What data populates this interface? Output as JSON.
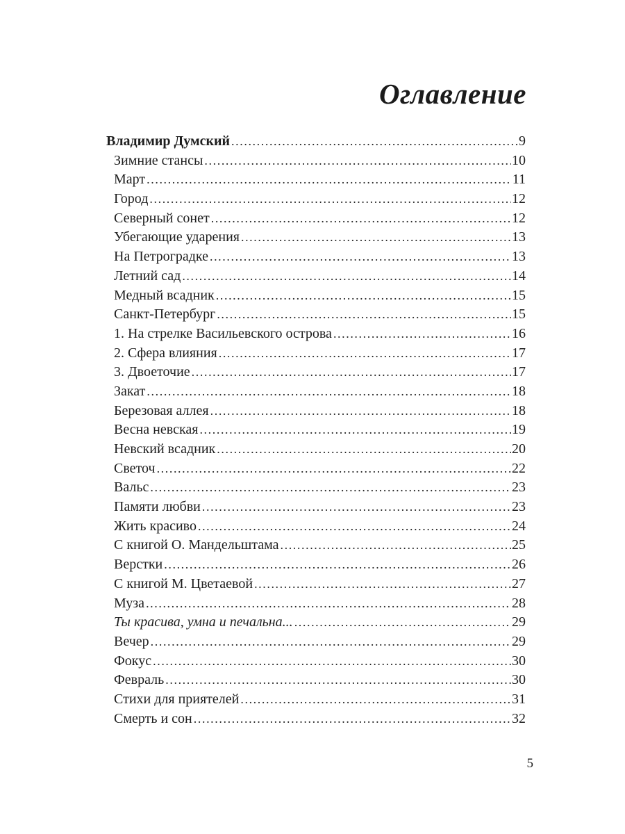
{
  "page": {
    "title": "Оглавление",
    "folio": "5"
  },
  "toc": {
    "entries": [
      {
        "label": "Владимир Думский",
        "page": "9",
        "style": "heading"
      },
      {
        "label": "Зимние стансы",
        "page": "10",
        "style": "normal"
      },
      {
        "label": "Март",
        "page": "11",
        "style": "normal"
      },
      {
        "label": "Город",
        "page": "12",
        "style": "normal"
      },
      {
        "label": "Северный сонет",
        "page": "12",
        "style": "normal"
      },
      {
        "label": "Убегающие ударения",
        "page": "13",
        "style": "normal"
      },
      {
        "label": "На Петроградке",
        "page": "13",
        "style": "normal"
      },
      {
        "label": "Летний сад",
        "page": "14",
        "style": "normal"
      },
      {
        "label": "Медный всадник",
        "page": "15",
        "style": "normal"
      },
      {
        "label": "Санкт-Петербург",
        "page": "15",
        "style": "normal"
      },
      {
        "label": "1. На стрелке Васильевского острова",
        "page": "16",
        "style": "normal"
      },
      {
        "label": "2. Сфера влияния",
        "page": "17",
        "style": "normal"
      },
      {
        "label": "3. Двоеточие",
        "page": "17",
        "style": "normal"
      },
      {
        "label": "Закат",
        "page": "18",
        "style": "normal"
      },
      {
        "label": "Березовая аллея",
        "page": "18",
        "style": "normal"
      },
      {
        "label": "Весна невская",
        "page": "19",
        "style": "normal"
      },
      {
        "label": "Невский всадник",
        "page": "20",
        "style": "normal"
      },
      {
        "label": "Светоч",
        "page": "22",
        "style": "normal"
      },
      {
        "label": "Вальс",
        "page": "23",
        "style": "normal"
      },
      {
        "label": "Памяти любви",
        "page": "23",
        "style": "normal"
      },
      {
        "label": "Жить красиво",
        "page": "24",
        "style": "normal"
      },
      {
        "label": "С книгой О. Мандельштама",
        "page": "25",
        "style": "normal"
      },
      {
        "label": "Верстки",
        "page": "26",
        "style": "normal"
      },
      {
        "label": "С книгой М. Цветаевой",
        "page": "27",
        "style": "normal"
      },
      {
        "label": "Муза",
        "page": "28",
        "style": "normal"
      },
      {
        "label": "Ты красива, умна и печальна...",
        "page": "29",
        "style": "italic"
      },
      {
        "label": "Вечер",
        "page": "29",
        "style": "normal"
      },
      {
        "label": "Фокус",
        "page": "30",
        "style": "normal"
      },
      {
        "label": "Февраль",
        "page": "30",
        "style": "normal"
      },
      {
        "label": "Стихи для приятелей",
        "page": "31",
        "style": "normal"
      },
      {
        "label": "Смерть и сон",
        "page": "32",
        "style": "normal"
      }
    ]
  }
}
